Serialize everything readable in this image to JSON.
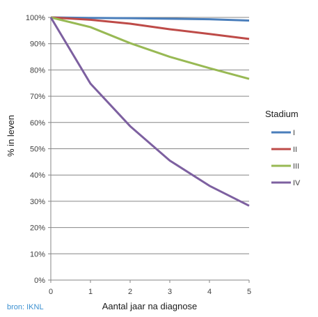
{
  "chart_data": {
    "type": "line",
    "title": "",
    "xlabel": "Aantal jaar na diagnose",
    "ylabel": "% in leven",
    "x": [
      0,
      1,
      2,
      3,
      4,
      5
    ],
    "xlim": [
      0,
      5
    ],
    "ylim": [
      0,
      100
    ],
    "y_tick_format": "%",
    "grid": "horizontal",
    "legend": {
      "title": "Stadium",
      "placement": "right"
    },
    "series": [
      {
        "name": "I",
        "color": "#4a7ebb",
        "values": [
          100,
          99.8,
          99.7,
          99.5,
          99.3,
          98.8
        ]
      },
      {
        "name": "II",
        "color": "#be4b48",
        "values": [
          100,
          99.1,
          97.6,
          95.5,
          93.7,
          91.8
        ]
      },
      {
        "name": "III",
        "color": "#98b954",
        "values": [
          100,
          96.3,
          90.2,
          85.0,
          80.7,
          76.6
        ]
      },
      {
        "name": "IV",
        "color": "#7d60a0",
        "values": [
          100,
          74.8,
          58.6,
          45.5,
          35.9,
          28.3
        ]
      }
    ]
  },
  "source_text": "bron: IKNL"
}
